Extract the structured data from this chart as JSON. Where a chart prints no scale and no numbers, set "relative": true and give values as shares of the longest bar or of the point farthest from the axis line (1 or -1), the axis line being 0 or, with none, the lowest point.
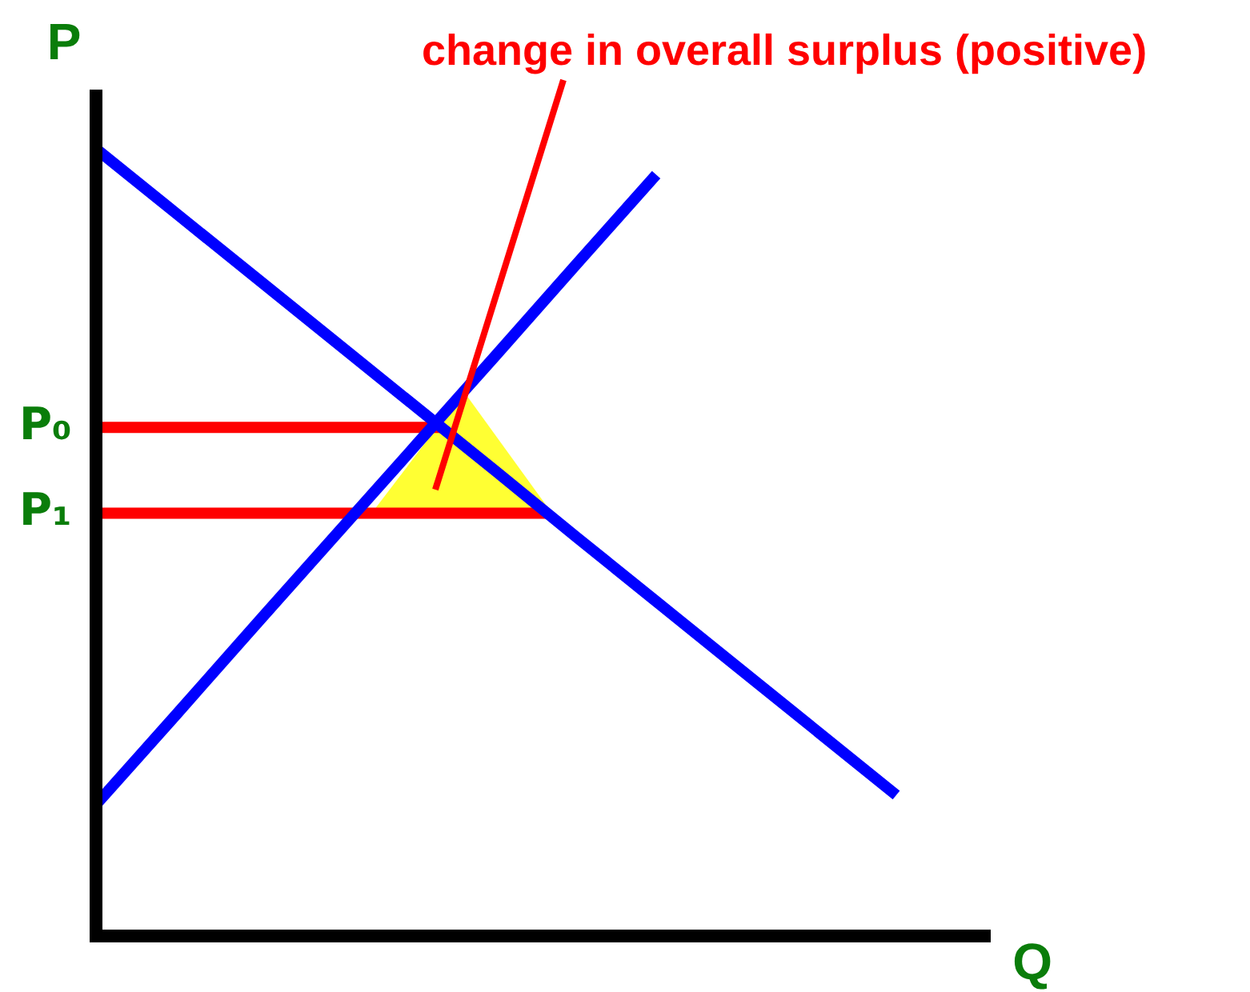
{
  "chart_data": {
    "type": "line",
    "relative": true,
    "xlabel": "Q",
    "ylabel": "P",
    "categories": [
      null,
      null,
      null,
      null,
      null,
      null,
      null,
      null,
      null,
      null,
      null
    ],
    "series": [
      {
        "color": "#0000ff",
        "values": [
          1,
          0.918,
          0.836,
          0.754,
          0.672,
          0.59,
          0.507,
          0.425,
          0.343,
          0.261,
          0.179
        ]
      },
      {
        "color": "#0000ff",
        "values": [
          0.167,
          0.281,
          0.396,
          0.51,
          0.624,
          0.738,
          0.853,
          0.967,
          null,
          null,
          null
        ]
      }
    ],
    "ref_lines": [
      {
        "axis": "y",
        "value": 0.646,
        "label": "P₀",
        "color": "#ff0000"
      },
      {
        "axis": "y",
        "value": 0.537,
        "label": "P₁",
        "color": "#ff0000"
      }
    ],
    "annotations": [
      "change in overall surplus (positive)"
    ],
    "legend": false,
    "marker": "none",
    "line_style": "solid"
  }
}
